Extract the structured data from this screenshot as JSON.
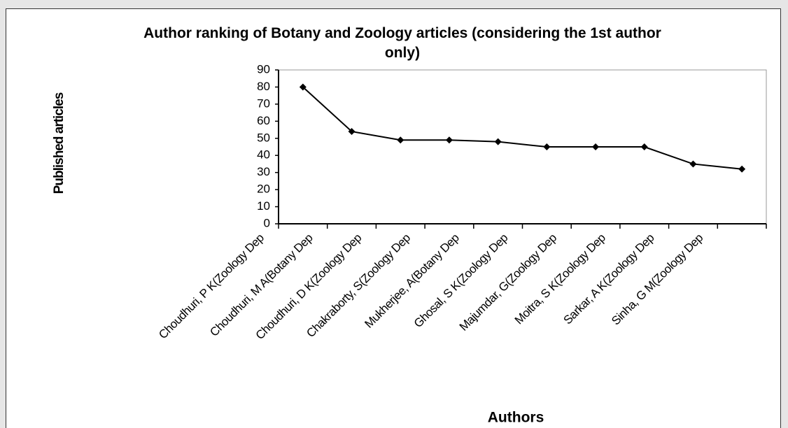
{
  "chart_data": {
    "type": "line",
    "title": "Author ranking of Botany and Zoology articles (considering the 1st author only)",
    "x_label": "Authors",
    "y_label": "Published articles",
    "categories": [
      "Choudhuri, P K(Zoology Dep",
      "Choudhuri, M A(Botany Dep",
      "Choudhuri, D K(Zoology Dep",
      "Chakraborty, S(Zoology Dep",
      "Mukherjee, A(Botany Dep",
      "Ghosal, S K(Zoology Dep",
      "Majumdar, G(Zoology Dep",
      "Moitra, S K(Zoology Dep",
      "Sarkar, A K(Zoology Dep",
      "Sinha, G M(Zoology Dep"
    ],
    "values": [
      80,
      54,
      49,
      49,
      48,
      45,
      45,
      45,
      35,
      32
    ],
    "color": "#000000",
    "ylim": [
      0,
      90
    ],
    "yticks": [
      0,
      10,
      20,
      30,
      40,
      50,
      60,
      70,
      80,
      90
    ],
    "grid": false
  }
}
